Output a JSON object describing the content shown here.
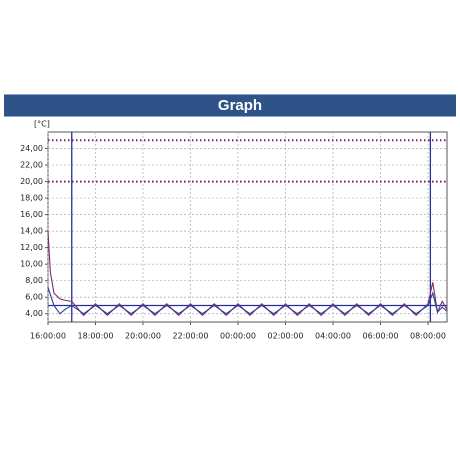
{
  "chart_data": {
    "type": "line",
    "title": "Graph",
    "y_label": "[°C]",
    "xlim": [
      16,
      32.8
    ],
    "ylim": [
      3,
      26
    ],
    "grid": true,
    "xticks": [
      {
        "value": 16,
        "label": "16:00:00"
      },
      {
        "value": 18,
        "label": "18:00:00"
      },
      {
        "value": 20,
        "label": "20:00:00"
      },
      {
        "value": 22,
        "label": "22:00:00"
      },
      {
        "value": 24,
        "label": "00:00:00"
      },
      {
        "value": 26,
        "label": "02:00:00"
      },
      {
        "value": 28,
        "label": "04:00:00"
      },
      {
        "value": 30,
        "label": "06:00:00"
      },
      {
        "value": 32,
        "label": "08:00:00"
      }
    ],
    "yticks": [
      {
        "value": 4,
        "label": "4,00"
      },
      {
        "value": 6,
        "label": "6,00"
      },
      {
        "value": 8,
        "label": "8,00"
      },
      {
        "value": 10,
        "label": "10,00"
      },
      {
        "value": 12,
        "label": "12,00"
      },
      {
        "value": 14,
        "label": "14,00"
      },
      {
        "value": 16,
        "label": "16,00"
      },
      {
        "value": 18,
        "label": "18,00"
      },
      {
        "value": 20,
        "label": "20,00"
      },
      {
        "value": 22,
        "label": "22,00"
      },
      {
        "value": 24,
        "label": "24,00"
      }
    ],
    "hlines": [
      {
        "value": 25,
        "color": "#7b1f6e",
        "style": "dotted"
      },
      {
        "value": 20,
        "color": "#7b1f6e",
        "style": "dotted"
      },
      {
        "value": 5,
        "color": "#23309a",
        "style": "solid"
      }
    ],
    "vlines": [
      {
        "value": 17,
        "color": "#23309a"
      },
      {
        "value": 32.1,
        "color": "#23309a"
      }
    ],
    "series": [
      {
        "color": "#7b2d6b",
        "x": [
          16,
          16.1,
          16.25,
          16.5,
          16.75,
          17,
          17.5,
          18,
          18.5,
          19,
          19.5,
          20,
          20.5,
          21,
          21.5,
          22,
          22.5,
          23,
          23.5,
          24,
          24.5,
          25,
          25.5,
          26,
          26.5,
          27,
          27.5,
          28,
          28.5,
          29,
          29.5,
          30,
          30.5,
          31,
          31.5,
          32,
          32.2,
          32.4,
          32.6,
          32.8
        ],
        "values": [
          14,
          9,
          6.5,
          5.8,
          5.6,
          5.5,
          3.8,
          5.2,
          3.8,
          5.2,
          3.8,
          5.2,
          3.8,
          5.2,
          3.8,
          5.2,
          3.8,
          5.2,
          3.8,
          5.2,
          3.8,
          5.2,
          3.8,
          5.2,
          3.8,
          5.2,
          3.8,
          5.2,
          3.8,
          5.2,
          3.8,
          5.2,
          3.8,
          5.2,
          3.8,
          5.2,
          7.8,
          4.2,
          5.5,
          4.5
        ]
      },
      {
        "color": "#2b3fa0",
        "x": [
          16,
          16.25,
          16.5,
          16.75,
          17,
          17.5,
          18,
          18.5,
          19,
          19.5,
          20,
          20.5,
          21,
          21.5,
          22,
          22.5,
          23,
          23.5,
          24,
          24.5,
          25,
          25.5,
          26,
          26.5,
          27,
          27.5,
          28,
          28.5,
          29,
          29.5,
          30,
          30.5,
          31,
          31.5,
          32,
          32.2,
          32.4,
          32.6,
          32.8
        ],
        "values": [
          7.2,
          5,
          4,
          4.6,
          5,
          4,
          5,
          4,
          5,
          4,
          5,
          4,
          5,
          4,
          5,
          4,
          5,
          4,
          5,
          4,
          5,
          4,
          5,
          4,
          5,
          4,
          5,
          4,
          5,
          4,
          5,
          4,
          5,
          4,
          5,
          6.5,
          4.2,
          4.8,
          4.3
        ]
      }
    ]
  }
}
